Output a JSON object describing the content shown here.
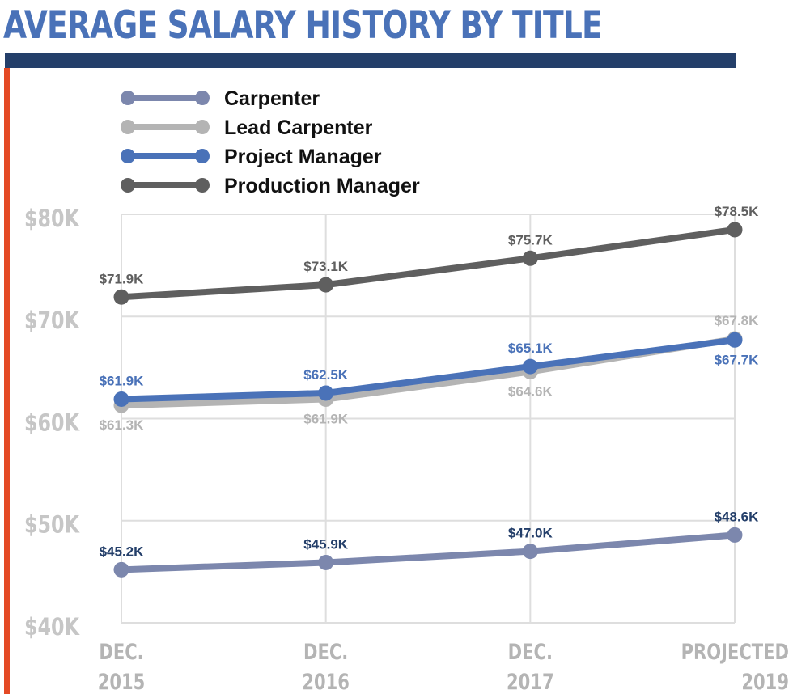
{
  "page": {
    "title": "AVERAGE SALARY HISTORY BY TITLE"
  },
  "chart_data": {
    "type": "line",
    "title": "AVERAGE SALARY HISTORY BY TITLE",
    "xlabel": "",
    "ylabel": "",
    "categories": [
      [
        "DEC.",
        "2015"
      ],
      [
        "DEC.",
        "2016"
      ],
      [
        "DEC.",
        "2017"
      ],
      [
        "PROJECTED",
        "2019"
      ]
    ],
    "y_ticks": [
      {
        "value": 40,
        "label": "$40K"
      },
      {
        "value": 50,
        "label": "$50K"
      },
      {
        "value": 60,
        "label": "$60K"
      },
      {
        "value": 70,
        "label": "$70K"
      },
      {
        "value": 80,
        "label": "$80K"
      }
    ],
    "ylim": [
      40,
      80
    ],
    "grid": true,
    "legend_position": "top-left",
    "series": [
      {
        "name": "Carpenter",
        "color": "#7c87ad",
        "label_color": "#243f6a",
        "values": [
          45.2,
          45.9,
          47.0,
          48.6
        ],
        "labels": [
          "$45.2K",
          "$45.9K",
          "$47.0K",
          "$48.6K"
        ],
        "label_side": [
          "above",
          "above",
          "above",
          "above"
        ]
      },
      {
        "name": "Lead Carpenter",
        "color": "#b4b4b4",
        "label_color": "#b4b4b4",
        "values": [
          61.3,
          61.9,
          64.6,
          67.8
        ],
        "labels": [
          "$61.3K",
          "$61.9K",
          "$64.6K",
          "$67.8K"
        ],
        "label_side": [
          "below",
          "below",
          "below",
          "above"
        ]
      },
      {
        "name": "Project Manager",
        "color": "#4a72b8",
        "label_color": "#4a72b8",
        "values": [
          61.9,
          62.5,
          65.1,
          67.7
        ],
        "labels": [
          "$61.9K",
          "$62.5K",
          "$65.1K",
          "$67.7K"
        ],
        "label_side": [
          "above",
          "above",
          "above",
          "below"
        ]
      },
      {
        "name": "Production Manager",
        "color": "#5f5f5f",
        "label_color": "#5f5f5f",
        "values": [
          71.9,
          73.1,
          75.7,
          78.5
        ],
        "labels": [
          "$71.9K",
          "$73.1K",
          "$75.7K",
          "$78.5K"
        ],
        "label_side": [
          "above",
          "above",
          "above",
          "above"
        ]
      }
    ]
  }
}
